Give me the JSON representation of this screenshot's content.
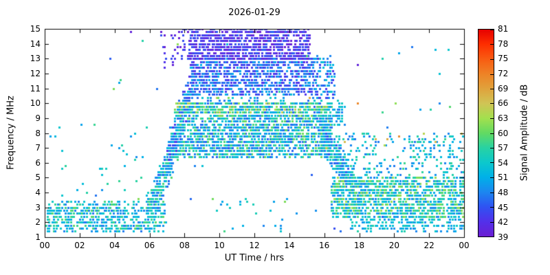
{
  "chart_data": {
    "type": "scatter",
    "title": "2026-01-29",
    "x_axis": {
      "label": "UT Time / hrs",
      "range": [
        0,
        24
      ],
      "ticks": [
        {
          "v": 0,
          "t": "00"
        },
        {
          "v": 2,
          "t": "02"
        },
        {
          "v": 4,
          "t": "04"
        },
        {
          "v": 6,
          "t": "06"
        },
        {
          "v": 8,
          "t": "08"
        },
        {
          "v": 10,
          "t": "10"
        },
        {
          "v": 12,
          "t": "12"
        },
        {
          "v": 14,
          "t": "14"
        },
        {
          "v": 16,
          "t": "16"
        },
        {
          "v": 18,
          "t": "18"
        },
        {
          "v": 20,
          "t": "20"
        },
        {
          "v": 22,
          "t": "22"
        },
        {
          "v": 24,
          "t": "00"
        }
      ]
    },
    "y_axis": {
      "label": "Frequency / MHz",
      "range": [
        1,
        15
      ],
      "ticks": [
        {
          "v": 1,
          "t": "1"
        },
        {
          "v": 2,
          "t": "2"
        },
        {
          "v": 3,
          "t": "3"
        },
        {
          "v": 4,
          "t": "4"
        },
        {
          "v": 5,
          "t": "5"
        },
        {
          "v": 6,
          "t": "6"
        },
        {
          "v": 7,
          "t": "7"
        },
        {
          "v": 8,
          "t": "8"
        },
        {
          "v": 9,
          "t": "9"
        },
        {
          "v": 10,
          "t": "10"
        },
        {
          "v": 11,
          "t": "11"
        },
        {
          "v": 12,
          "t": "12"
        },
        {
          "v": 13,
          "t": "13"
        },
        {
          "v": 14,
          "t": "14"
        },
        {
          "v": 15,
          "t": "15"
        }
      ]
    },
    "colorbar": {
      "label": "Signal Amplitude / dB",
      "range": [
        39,
        81
      ],
      "ticks": [
        39,
        42,
        45,
        48,
        51,
        54,
        57,
        60,
        63,
        66,
        69,
        72,
        75,
        78,
        81
      ],
      "colormap": [
        [
          39,
          "#6a1ed2"
        ],
        [
          42,
          "#5330ea"
        ],
        [
          45,
          "#2f52f2"
        ],
        [
          48,
          "#1c86f0"
        ],
        [
          51,
          "#00b0e8"
        ],
        [
          54,
          "#0cc8cc"
        ],
        [
          57,
          "#28d2a2"
        ],
        [
          60,
          "#62da62"
        ],
        [
          63,
          "#a2e04e"
        ],
        [
          66,
          "#d0c455"
        ],
        [
          69,
          "#e0a23c"
        ],
        [
          72,
          "#ee8226"
        ],
        [
          75,
          "#f85c12"
        ],
        [
          78,
          "#fe2e00"
        ],
        [
          81,
          "#e60000"
        ]
      ]
    },
    "point_size": 3,
    "quantize": {
      "t_step": 0.083333,
      "f_step": 0.2
    },
    "seed": 20260129,
    "clusters": [
      {
        "name": "night-low-band",
        "shape": "rect",
        "n": 550,
        "t": [
          0.1,
          6.9
        ],
        "f": [
          1.4,
          3.4
        ],
        "amp": [
          47,
          60
        ],
        "bias": 1.2
      },
      {
        "name": "early-sparse-mid",
        "shape": "rect",
        "n": 30,
        "t": [
          0.3,
          6.2
        ],
        "f": [
          3.5,
          9.0
        ],
        "amp": [
          48,
          58
        ],
        "bias": 1
      },
      {
        "name": "sunrise-rise-column",
        "shape": "diag",
        "n": 320,
        "t": [
          5.9,
          7.6
        ],
        "f": [
          2.5,
          7.5
        ],
        "spread": 1.6,
        "amp": [
          46,
          59
        ],
        "bias": 1.1
      },
      {
        "name": "sunrise-rise-high",
        "shape": "diag",
        "n": 230,
        "t": [
          7.0,
          8.6
        ],
        "f": [
          6.0,
          12.0
        ],
        "spread": 1.8,
        "amp": [
          42,
          53
        ],
        "bias": 1
      },
      {
        "name": "day-mid-band",
        "shape": "rect",
        "n": 2100,
        "t": [
          7.6,
          16.4
        ],
        "f": [
          6.4,
          10.1
        ],
        "amp": [
          46,
          61
        ],
        "bias": 1.35
      },
      {
        "name": "day-mid-green-edge",
        "shape": "rect",
        "n": 140,
        "t": [
          7.2,
          16.2
        ],
        "f": [
          9.2,
          10.1
        ],
        "amp": [
          56,
          66
        ],
        "bias": 1.2
      },
      {
        "name": "day-high-band-blue",
        "shape": "rect",
        "n": 1000,
        "t": [
          8.4,
          15.4
        ],
        "f": [
          10.6,
          13.1
        ],
        "amp": [
          42,
          51
        ],
        "bias": 1.15
      },
      {
        "name": "day-high-band-purple",
        "shape": "rect",
        "n": 1050,
        "t": [
          8.2,
          15.2
        ],
        "f": [
          12.9,
          15.0
        ],
        "amp": [
          39,
          46
        ],
        "bias": 1.1
      },
      {
        "name": "day-gap-sparse",
        "shape": "rect",
        "n": 45,
        "t": [
          8.0,
          16.0
        ],
        "f": [
          10.1,
          10.7
        ],
        "amp": [
          46,
          55
        ],
        "bias": 1
      },
      {
        "name": "afternoon-descent",
        "shape": "diag",
        "n": 420,
        "t": [
          15.8,
          17.8
        ],
        "f": [
          8.5,
          3.8
        ],
        "spread": 1.4,
        "amp": [
          45,
          58
        ],
        "bias": 1.15
      },
      {
        "name": "descent-top",
        "shape": "rect",
        "n": 55,
        "t": [
          16.2,
          17.2
        ],
        "f": [
          8.5,
          10.2
        ],
        "amp": [
          47,
          56
        ],
        "bias": 1
      },
      {
        "name": "high-band-right-edge",
        "shape": "rect",
        "n": 110,
        "t": [
          15.4,
          16.6
        ],
        "f": [
          10.3,
          13.2
        ],
        "amp": [
          42,
          54
        ],
        "bias": 1
      },
      {
        "name": "evening-low-band",
        "shape": "rect",
        "n": 1250,
        "t": [
          16.4,
          24.0
        ],
        "f": [
          2.3,
          5.0
        ],
        "amp": [
          48,
          63
        ],
        "bias": 1.25
      },
      {
        "name": "evening-deep-low",
        "shape": "rect",
        "n": 160,
        "t": [
          17.5,
          24.0
        ],
        "f": [
          1.4,
          2.3
        ],
        "amp": [
          48,
          57
        ],
        "bias": 1.1
      },
      {
        "name": "evening-mid-sparse",
        "shape": "rect",
        "n": 240,
        "t": [
          16.8,
          24.0
        ],
        "f": [
          5.0,
          8.0
        ],
        "amp": [
          47,
          58
        ],
        "bias": 1.2
      },
      {
        "name": "midday-low-sparse",
        "shape": "rect",
        "n": 22,
        "t": [
          9.5,
          15.5
        ],
        "f": [
          1.4,
          3.6
        ],
        "amp": [
          48,
          56
        ],
        "bias": 1
      },
      {
        "name": "pre-high-purple",
        "shape": "rect",
        "n": 45,
        "t": [
          6.6,
          8.4
        ],
        "f": [
          12.4,
          15.0
        ],
        "amp": [
          39,
          45
        ],
        "bias": 1
      },
      {
        "name": "warm-specks-day",
        "shape": "rect",
        "n": 7,
        "t": [
          8.0,
          21.0
        ],
        "f": [
          9.4,
          10.8
        ],
        "amp": [
          60,
          72
        ],
        "bias": 1
      },
      {
        "name": "random-outliers",
        "shape": "rect",
        "n": 45,
        "t": [
          0.2,
          23.8
        ],
        "f": [
          1.2,
          14.8
        ],
        "amp": [
          44,
          62
        ],
        "bias": 1
      },
      {
        "name": "evening-warm-specks",
        "shape": "rect",
        "n": 6,
        "t": [
          17.0,
          24.0
        ],
        "f": [
          6.6,
          8.2
        ],
        "amp": [
          62,
          72
        ],
        "bias": 1
      }
    ],
    "singles": [
      {
        "t": 4.9,
        "f": 14.8,
        "a": 40
      },
      {
        "t": 17.9,
        "f": 12.6,
        "a": 40
      },
      {
        "t": 19.6,
        "f": 7.5,
        "a": 68
      },
      {
        "t": 23.85,
        "f": 8.0,
        "a": 66
      },
      {
        "t": 0.3,
        "f": 7.7,
        "a": 50
      },
      {
        "t": 0.55,
        "f": 7.8,
        "a": 52
      },
      {
        "t": 2.1,
        "f": 8.6,
        "a": 50
      },
      {
        "t": 16.1,
        "f": 6.9,
        "a": 66
      },
      {
        "t": 20.1,
        "f": 10.1,
        "a": 62
      },
      {
        "t": 10.4,
        "f": 3.2,
        "a": 52
      },
      {
        "t": 13.5,
        "f": 1.5,
        "a": 50
      },
      {
        "t": 21.5,
        "f": 9.6,
        "a": 50
      },
      {
        "t": 22.6,
        "f": 10.0,
        "a": 48
      }
    ]
  }
}
